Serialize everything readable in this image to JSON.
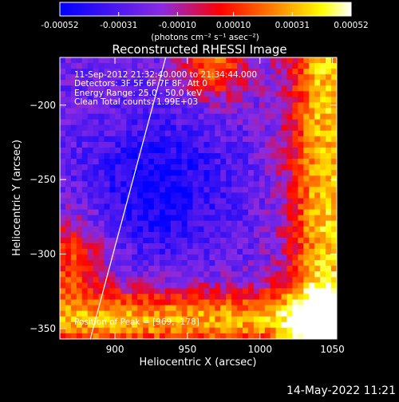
{
  "chart_data": {
    "type": "heatmap",
    "title": "Reconstructed RHESSI Image",
    "xlabel": "Heliocentric X (arcsec)",
    "ylabel": "Heliocentric Y (arcsec)",
    "xlim": [
      862,
      1053
    ],
    "ylim": [
      -357,
      -168
    ],
    "x_ticks": [
      "900",
      "950",
      "1000",
      "1050"
    ],
    "x_tick_values": [
      900,
      950,
      1000,
      1050
    ],
    "y_ticks": [
      "-200",
      "-250",
      "-300",
      "-350"
    ],
    "y_tick_values": [
      -200,
      -250,
      -300,
      -350
    ],
    "colorbar": {
      "ticks": [
        "-0.00052",
        "-0.00031",
        "-0.00010",
        "0.00010",
        "0.00031",
        "0.00052"
      ],
      "tick_values": [
        -0.00052,
        -0.00031,
        -0.0001,
        0.0001,
        0.00031,
        0.00052
      ],
      "range": [
        -0.00052,
        0.00052
      ],
      "unit_label": "(photons cm⁻² s⁻¹ asec⁻²)",
      "colors": [
        "#0000ff",
        "#8a2be2",
        "#ff0000",
        "#ff8c00",
        "#ffff00",
        "#ffffff"
      ]
    },
    "annotations": [
      "11-Sep-2012 21:32:40.000 to 21:34:44.000",
      "Detectors: 3F 5F 6F 7F 8F, Att 0",
      "Energy Range: 25.0 - 50.0 keV",
      "Clean     Total counts: 1.99E+03"
    ],
    "peak_label": "Position of Peak = [969, -178]",
    "limb_line": {
      "from": [
        883,
        -357
      ],
      "to": [
        935,
        -168
      ]
    },
    "grid": false
  },
  "footer": {
    "date": "14-May-2022 11:21"
  }
}
